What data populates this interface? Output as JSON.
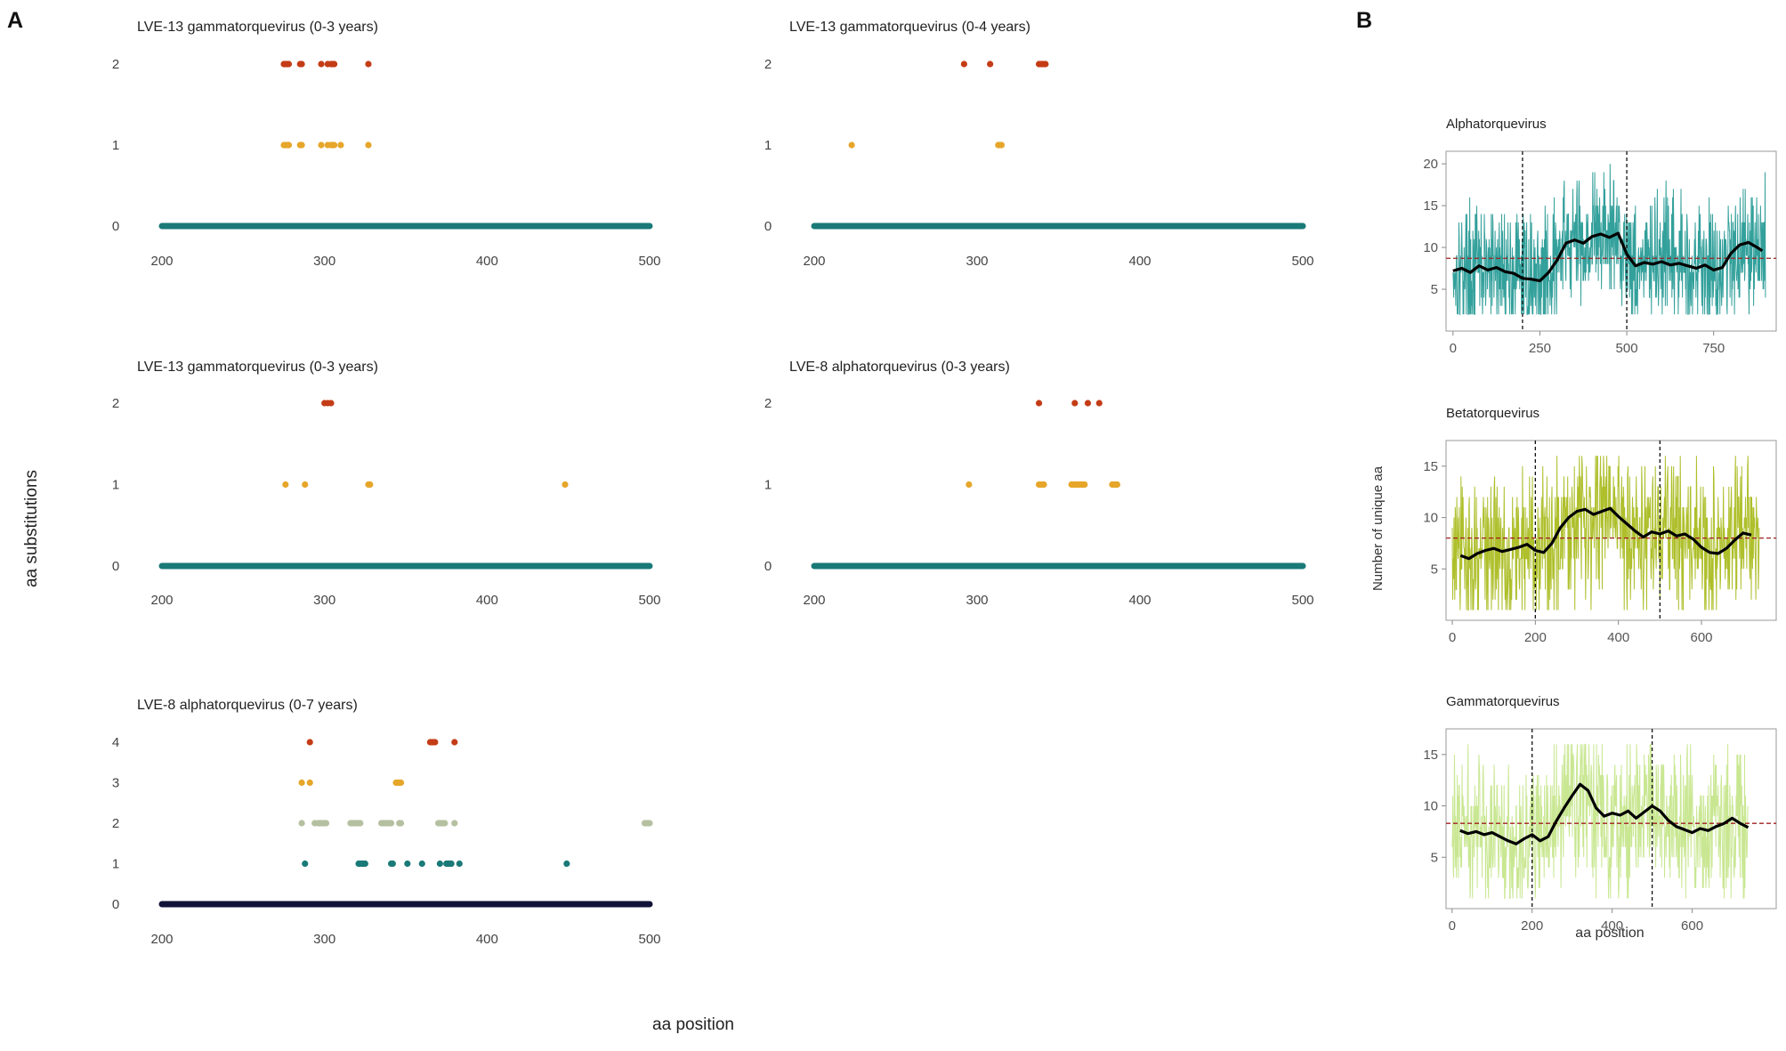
{
  "panel_labels": {
    "a": "A",
    "b": "B"
  },
  "panel_a": {
    "ylabel": "aa substitutions",
    "xlabel": "aa position"
  },
  "panel_b": {
    "ylabel": "Number of unique aa",
    "xlabel": "aa position"
  },
  "colors": {
    "teal": "#1a7a78",
    "orange": "#e6a62a",
    "red": "#c43c16",
    "sage": "#b5c0a0",
    "navy": "#121338",
    "alpha_line": "#1d9690",
    "beta_line": "#a5b814",
    "gamma_line": "#c3e486",
    "mean_line": "#a02020"
  },
  "chart_data": [
    {
      "type": "scatter",
      "title": "LVE-13 gammatorquevirus (0-3 years)",
      "xlabel": "aa position",
      "ylabel": "aa substitutions",
      "xlim": [
        200,
        500
      ],
      "ylim": [
        0,
        2
      ],
      "xticks": [
        "200",
        "300",
        "400",
        "500"
      ],
      "yticks": [
        "0",
        "1",
        "2"
      ],
      "baseline": {
        "y": 0,
        "x_range": [
          200,
          500
        ]
      },
      "series": [
        {
          "name": "1 substitution",
          "color": "orange",
          "y": 1,
          "x": [
            275,
            276,
            277,
            278,
            285,
            286,
            298,
            302,
            304,
            305,
            306,
            310,
            327
          ]
        },
        {
          "name": "2 substitutions",
          "color": "red",
          "y": 2,
          "x": [
            275,
            276,
            277,
            278,
            285,
            286,
            298,
            302,
            304,
            305,
            306,
            327
          ]
        }
      ]
    },
    {
      "type": "scatter",
      "title": "LVE-13 gammatorquevirus (0-4 years)",
      "xlabel": "aa position",
      "ylabel": "aa substitutions",
      "xlim": [
        200,
        500
      ],
      "ylim": [
        0,
        2
      ],
      "xticks": [
        "200",
        "300",
        "400",
        "500"
      ],
      "yticks": [
        "0",
        "1",
        "2"
      ],
      "baseline": {
        "y": 0,
        "x_range": [
          200,
          500
        ]
      },
      "series": [
        {
          "name": "1 substitution",
          "color": "orange",
          "y": 1,
          "x": [
            223,
            313,
            314,
            315
          ]
        },
        {
          "name": "2 substitutions",
          "color": "red",
          "y": 2,
          "x": [
            292,
            308,
            338,
            339,
            340,
            341,
            342
          ]
        }
      ]
    },
    {
      "type": "scatter",
      "title": "LVE-13 gammatorquevirus (0-3 years)",
      "xlabel": "aa position",
      "ylabel": "aa substitutions",
      "xlim": [
        200,
        500
      ],
      "ylim": [
        0,
        2
      ],
      "xticks": [
        "200",
        "300",
        "400",
        "500"
      ],
      "yticks": [
        "0",
        "1",
        "2"
      ],
      "baseline": {
        "y": 0,
        "x_range": [
          200,
          500
        ]
      },
      "series": [
        {
          "name": "1 substitution",
          "color": "orange",
          "y": 1,
          "x": [
            276,
            288,
            327,
            328,
            448
          ]
        },
        {
          "name": "2 substitutions",
          "color": "red",
          "y": 2,
          "x": [
            300,
            302,
            304
          ]
        }
      ]
    },
    {
      "type": "scatter",
      "title": "LVE-8 alphatorquevirus (0-3 years)",
      "xlabel": "aa position",
      "ylabel": "aa substitutions",
      "xlim": [
        200,
        500
      ],
      "ylim": [
        0,
        2
      ],
      "xticks": [
        "200",
        "300",
        "400",
        "500"
      ],
      "yticks": [
        "0",
        "1",
        "2"
      ],
      "baseline": {
        "y": 0,
        "x_range": [
          200,
          500
        ]
      },
      "series": [
        {
          "name": "1 substitution",
          "color": "orange",
          "y": 1,
          "x": [
            295,
            338,
            339,
            340,
            341,
            358,
            359,
            360,
            361,
            362,
            363,
            364,
            365,
            366,
            383,
            384,
            385,
            386
          ]
        },
        {
          "name": "2 substitutions",
          "color": "red",
          "y": 2,
          "x": [
            338,
            360,
            368,
            375
          ]
        }
      ]
    },
    {
      "type": "scatter",
      "title": "LVE-8 alphatorquevirus (0-7 years)",
      "xlabel": "aa position",
      "ylabel": "aa substitutions",
      "xlim": [
        200,
        500
      ],
      "ylim": [
        0,
        4
      ],
      "xticks": [
        "200",
        "300",
        "400",
        "500"
      ],
      "yticks": [
        "0",
        "1",
        "2",
        "3",
        "4"
      ],
      "baseline": {
        "y": 0,
        "x_range": [
          200,
          500
        ],
        "color": "navy"
      },
      "series": [
        {
          "name": "1 substitution",
          "color": "teal",
          "y": 1,
          "x": [
            288,
            321,
            322,
            323,
            324,
            325,
            341,
            342,
            351,
            360,
            371,
            375,
            376,
            377,
            378,
            383,
            449
          ]
        },
        {
          "name": "2 substitutions",
          "color": "sage",
          "y": 2,
          "x": [
            286,
            294,
            296,
            297,
            298,
            299,
            300,
            301,
            316,
            317,
            318,
            319,
            320,
            321,
            322,
            335,
            336,
            337,
            338,
            339,
            340,
            341,
            346,
            347,
            370,
            371,
            372,
            373,
            374,
            380,
            497,
            498,
            499,
            500
          ]
        },
        {
          "name": "3 substitutions",
          "color": "orange",
          "y": 3,
          "x": [
            286,
            291,
            344,
            345,
            346,
            347
          ]
        },
        {
          "name": "4 substitutions",
          "color": "red",
          "y": 4,
          "x": [
            291,
            365,
            366,
            367,
            368,
            380
          ]
        }
      ]
    },
    {
      "type": "line",
      "title": "Alphatorquevirus",
      "xlabel": "aa position",
      "ylabel": "Number of unique aa",
      "xlim": [
        -20,
        930
      ],
      "ylim": [
        0,
        21.5
      ],
      "xticks": [
        0,
        250,
        500,
        750
      ],
      "yticks": [
        5,
        10,
        15,
        20
      ],
      "n_positions": 900,
      "raw_series": {
        "color": "alpha_line",
        "range": [
          2,
          20
        ]
      },
      "mean_value": 8.7,
      "vlines": [
        200,
        500
      ],
      "smooth_series": {
        "color": "black",
        "x": [
          0,
          25,
          50,
          75,
          100,
          125,
          150,
          175,
          200,
          225,
          250,
          275,
          300,
          325,
          350,
          375,
          400,
          425,
          450,
          475,
          500,
          525,
          550,
          575,
          600,
          625,
          650,
          675,
          700,
          725,
          750,
          775,
          800,
          825,
          850,
          875,
          890
        ],
        "y": [
          7.2,
          7.5,
          7.0,
          7.8,
          7.3,
          7.6,
          7.1,
          6.9,
          6.3,
          6.2,
          6.0,
          7.0,
          8.5,
          10.5,
          10.9,
          10.5,
          11.3,
          11.6,
          11.2,
          11.7,
          9.2,
          7.8,
          8.2,
          8.0,
          8.3,
          7.9,
          8.1,
          7.8,
          7.5,
          7.9,
          7.3,
          7.6,
          9.3,
          10.3,
          10.6,
          10.0,
          9.6
        ]
      }
    },
    {
      "type": "line",
      "title": "Betatorquevirus",
      "xlabel": "aa position",
      "ylabel": "Number of unique aa",
      "xlim": [
        -15,
        780
      ],
      "ylim": [
        0,
        17.5
      ],
      "xticks": [
        0,
        200,
        400,
        600
      ],
      "yticks": [
        5,
        10,
        15
      ],
      "n_positions": 740,
      "raw_series": {
        "color": "beta_line",
        "range": [
          1,
          16
        ]
      },
      "mean_value": 8.0,
      "vlines": [
        200,
        500
      ],
      "smooth_series": {
        "color": "black",
        "x": [
          20,
          40,
          60,
          80,
          100,
          120,
          140,
          160,
          180,
          200,
          220,
          240,
          260,
          280,
          300,
          320,
          340,
          360,
          380,
          400,
          420,
          440,
          460,
          480,
          500,
          520,
          540,
          560,
          580,
          600,
          620,
          640,
          660,
          680,
          700,
          720
        ],
        "y": [
          6.3,
          6.0,
          6.5,
          6.8,
          7.0,
          6.7,
          6.9,
          7.1,
          7.4,
          6.8,
          6.6,
          7.5,
          9.0,
          10.0,
          10.6,
          10.8,
          10.3,
          10.6,
          10.9,
          10.1,
          9.4,
          8.7,
          8.1,
          8.6,
          8.4,
          8.7,
          8.2,
          8.4,
          7.9,
          7.1,
          6.6,
          6.5,
          7.0,
          7.8,
          8.5,
          8.3
        ]
      }
    },
    {
      "type": "line",
      "title": "Gammatorquevirus",
      "xlabel": "aa position",
      "ylabel": "Number of unique aa",
      "xlim": [
        -15,
        810
      ],
      "ylim": [
        0,
        17.5
      ],
      "xticks": [
        0,
        200,
        400,
        600
      ],
      "yticks": [
        5,
        10,
        15
      ],
      "n_positions": 740,
      "raw_series": {
        "color": "gamma_line",
        "range": [
          1,
          16
        ]
      },
      "mean_value": 8.3,
      "vlines": [
        200,
        500
      ],
      "smooth_series": {
        "color": "black",
        "x": [
          20,
          40,
          60,
          80,
          100,
          120,
          140,
          160,
          180,
          200,
          220,
          240,
          260,
          280,
          300,
          320,
          340,
          360,
          380,
          400,
          420,
          440,
          460,
          480,
          500,
          520,
          540,
          560,
          580,
          600,
          620,
          640,
          660,
          680,
          700,
          720,
          740
        ],
        "y": [
          7.6,
          7.3,
          7.5,
          7.2,
          7.4,
          7.0,
          6.6,
          6.3,
          6.8,
          7.2,
          6.6,
          7.0,
          8.5,
          9.8,
          11.0,
          12.1,
          11.5,
          9.8,
          9.0,
          9.3,
          9.1,
          9.5,
          8.8,
          9.4,
          10.0,
          9.5,
          8.6,
          8.0,
          7.7,
          7.4,
          7.8,
          7.6,
          8.0,
          8.3,
          8.8,
          8.3,
          7.9
        ]
      }
    }
  ]
}
